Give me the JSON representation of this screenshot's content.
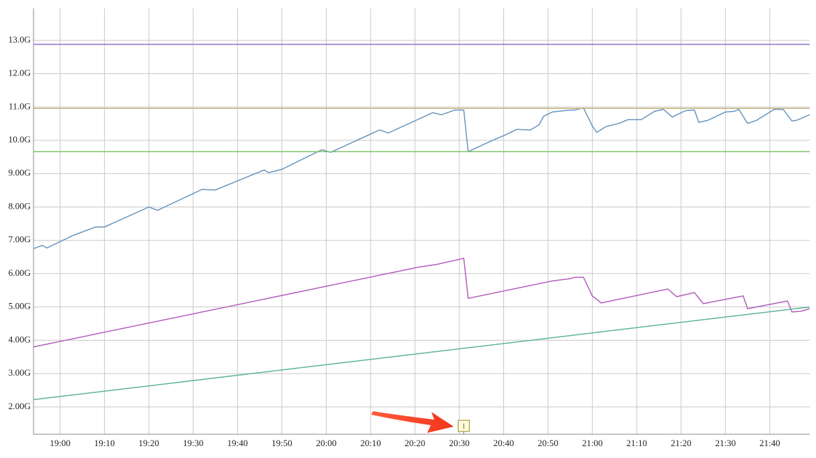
{
  "chart_data": {
    "type": "line",
    "xlim": [
      "18:54",
      "21:49"
    ],
    "xticks": [
      "19:00",
      "19:10",
      "19:20",
      "19:30",
      "19:40",
      "19:50",
      "20:00",
      "20:10",
      "20:20",
      "20:30",
      "20:40",
      "20:50",
      "21:00",
      "21:10",
      "21:20",
      "21:30",
      "21:40"
    ],
    "ylim": [
      1.18,
      13.96
    ],
    "yticks": [
      {
        "value": 2,
        "label": "2.00G"
      },
      {
        "value": 3,
        "label": "3.00G"
      },
      {
        "value": 4,
        "label": "4.00G"
      },
      {
        "value": 5,
        "label": "5.00G"
      },
      {
        "value": 6,
        "label": "6.00G"
      },
      {
        "value": 7,
        "label": "7.00G"
      },
      {
        "value": 8,
        "label": "8.00G"
      },
      {
        "value": 9,
        "label": "9.00G"
      },
      {
        "value": 10,
        "label": "10.0G"
      },
      {
        "value": 11,
        "label": "11.0G"
      },
      {
        "value": 12,
        "label": "12.0G"
      },
      {
        "value": 13,
        "label": "13.0G"
      }
    ],
    "grid": true,
    "series": [
      {
        "color": "#6a96bd",
        "x": [
          "18:54",
          "18:56",
          "18:57",
          "19:03",
          "19:08",
          "19:10",
          "19:20",
          "19:22",
          "19:32",
          "19:35",
          "19:46",
          "19:47",
          "19:50",
          "19:59",
          "20:01",
          "20:12",
          "20:14",
          "20:23",
          "20:24",
          "20:26",
          "20:29",
          "20:31",
          "20:32",
          "20:37",
          "20:40",
          "20:43",
          "20:46",
          "20:48",
          "20:49",
          "20:51",
          "20:55",
          "20:56",
          "20:58",
          "21:00",
          "21:01",
          "21:03",
          "21:06",
          "21:08",
          "21:11",
          "21:14",
          "21:16",
          "21:18",
          "21:21",
          "21:23",
          "21:24",
          "21:26",
          "21:30",
          "21:32",
          "21:33",
          "21:35",
          "21:37",
          "21:41",
          "21:43",
          "21:45",
          "21:46",
          "21:49"
        ],
        "values": [
          6.75,
          6.85,
          6.77,
          7.15,
          7.4,
          7.4,
          8.0,
          7.9,
          8.53,
          8.51,
          9.11,
          9.03,
          9.13,
          9.72,
          9.64,
          10.31,
          10.22,
          10.77,
          10.83,
          10.77,
          10.91,
          10.91,
          9.66,
          9.97,
          10.14,
          10.33,
          10.31,
          10.47,
          10.72,
          10.85,
          10.91,
          10.91,
          10.97,
          10.43,
          10.24,
          10.41,
          10.51,
          10.62,
          10.62,
          10.87,
          10.93,
          10.7,
          10.89,
          10.91,
          10.54,
          10.6,
          10.85,
          10.87,
          10.93,
          10.51,
          10.6,
          10.93,
          10.93,
          10.58,
          10.6,
          10.77
        ]
      },
      {
        "color": "#b35fbd",
        "x": [
          "18:54",
          "20:21",
          "20:25",
          "20:31",
          "20:32",
          "20:51",
          "20:55",
          "20:56",
          "20:58",
          "21:00",
          "21:02",
          "21:17",
          "21:19",
          "21:23",
          "21:25",
          "21:34",
          "21:35",
          "21:44",
          "21:45",
          "21:47",
          "21:49"
        ],
        "values": [
          3.8,
          6.2,
          6.28,
          6.46,
          5.26,
          5.78,
          5.85,
          5.89,
          5.89,
          5.33,
          5.12,
          5.54,
          5.31,
          5.43,
          5.1,
          5.33,
          4.95,
          5.18,
          4.85,
          4.87,
          4.95
        ]
      },
      {
        "color": "#5eb596",
        "x": [
          "18:54",
          "21:49"
        ],
        "values": [
          2.22,
          5.0
        ]
      },
      {
        "color": "#8a6fce",
        "x": [
          "18:54",
          "21:49"
        ],
        "values": [
          12.88,
          12.88
        ]
      },
      {
        "color": "#c8b27a",
        "x": [
          "18:54",
          "21:49"
        ],
        "values": [
          10.96,
          10.96
        ]
      },
      {
        "color": "#7cc36a",
        "x": [
          "18:54",
          "21:49"
        ],
        "values": [
          9.66,
          9.66
        ]
      }
    ],
    "annotation": {
      "text": "1",
      "x": "20:31"
    }
  }
}
